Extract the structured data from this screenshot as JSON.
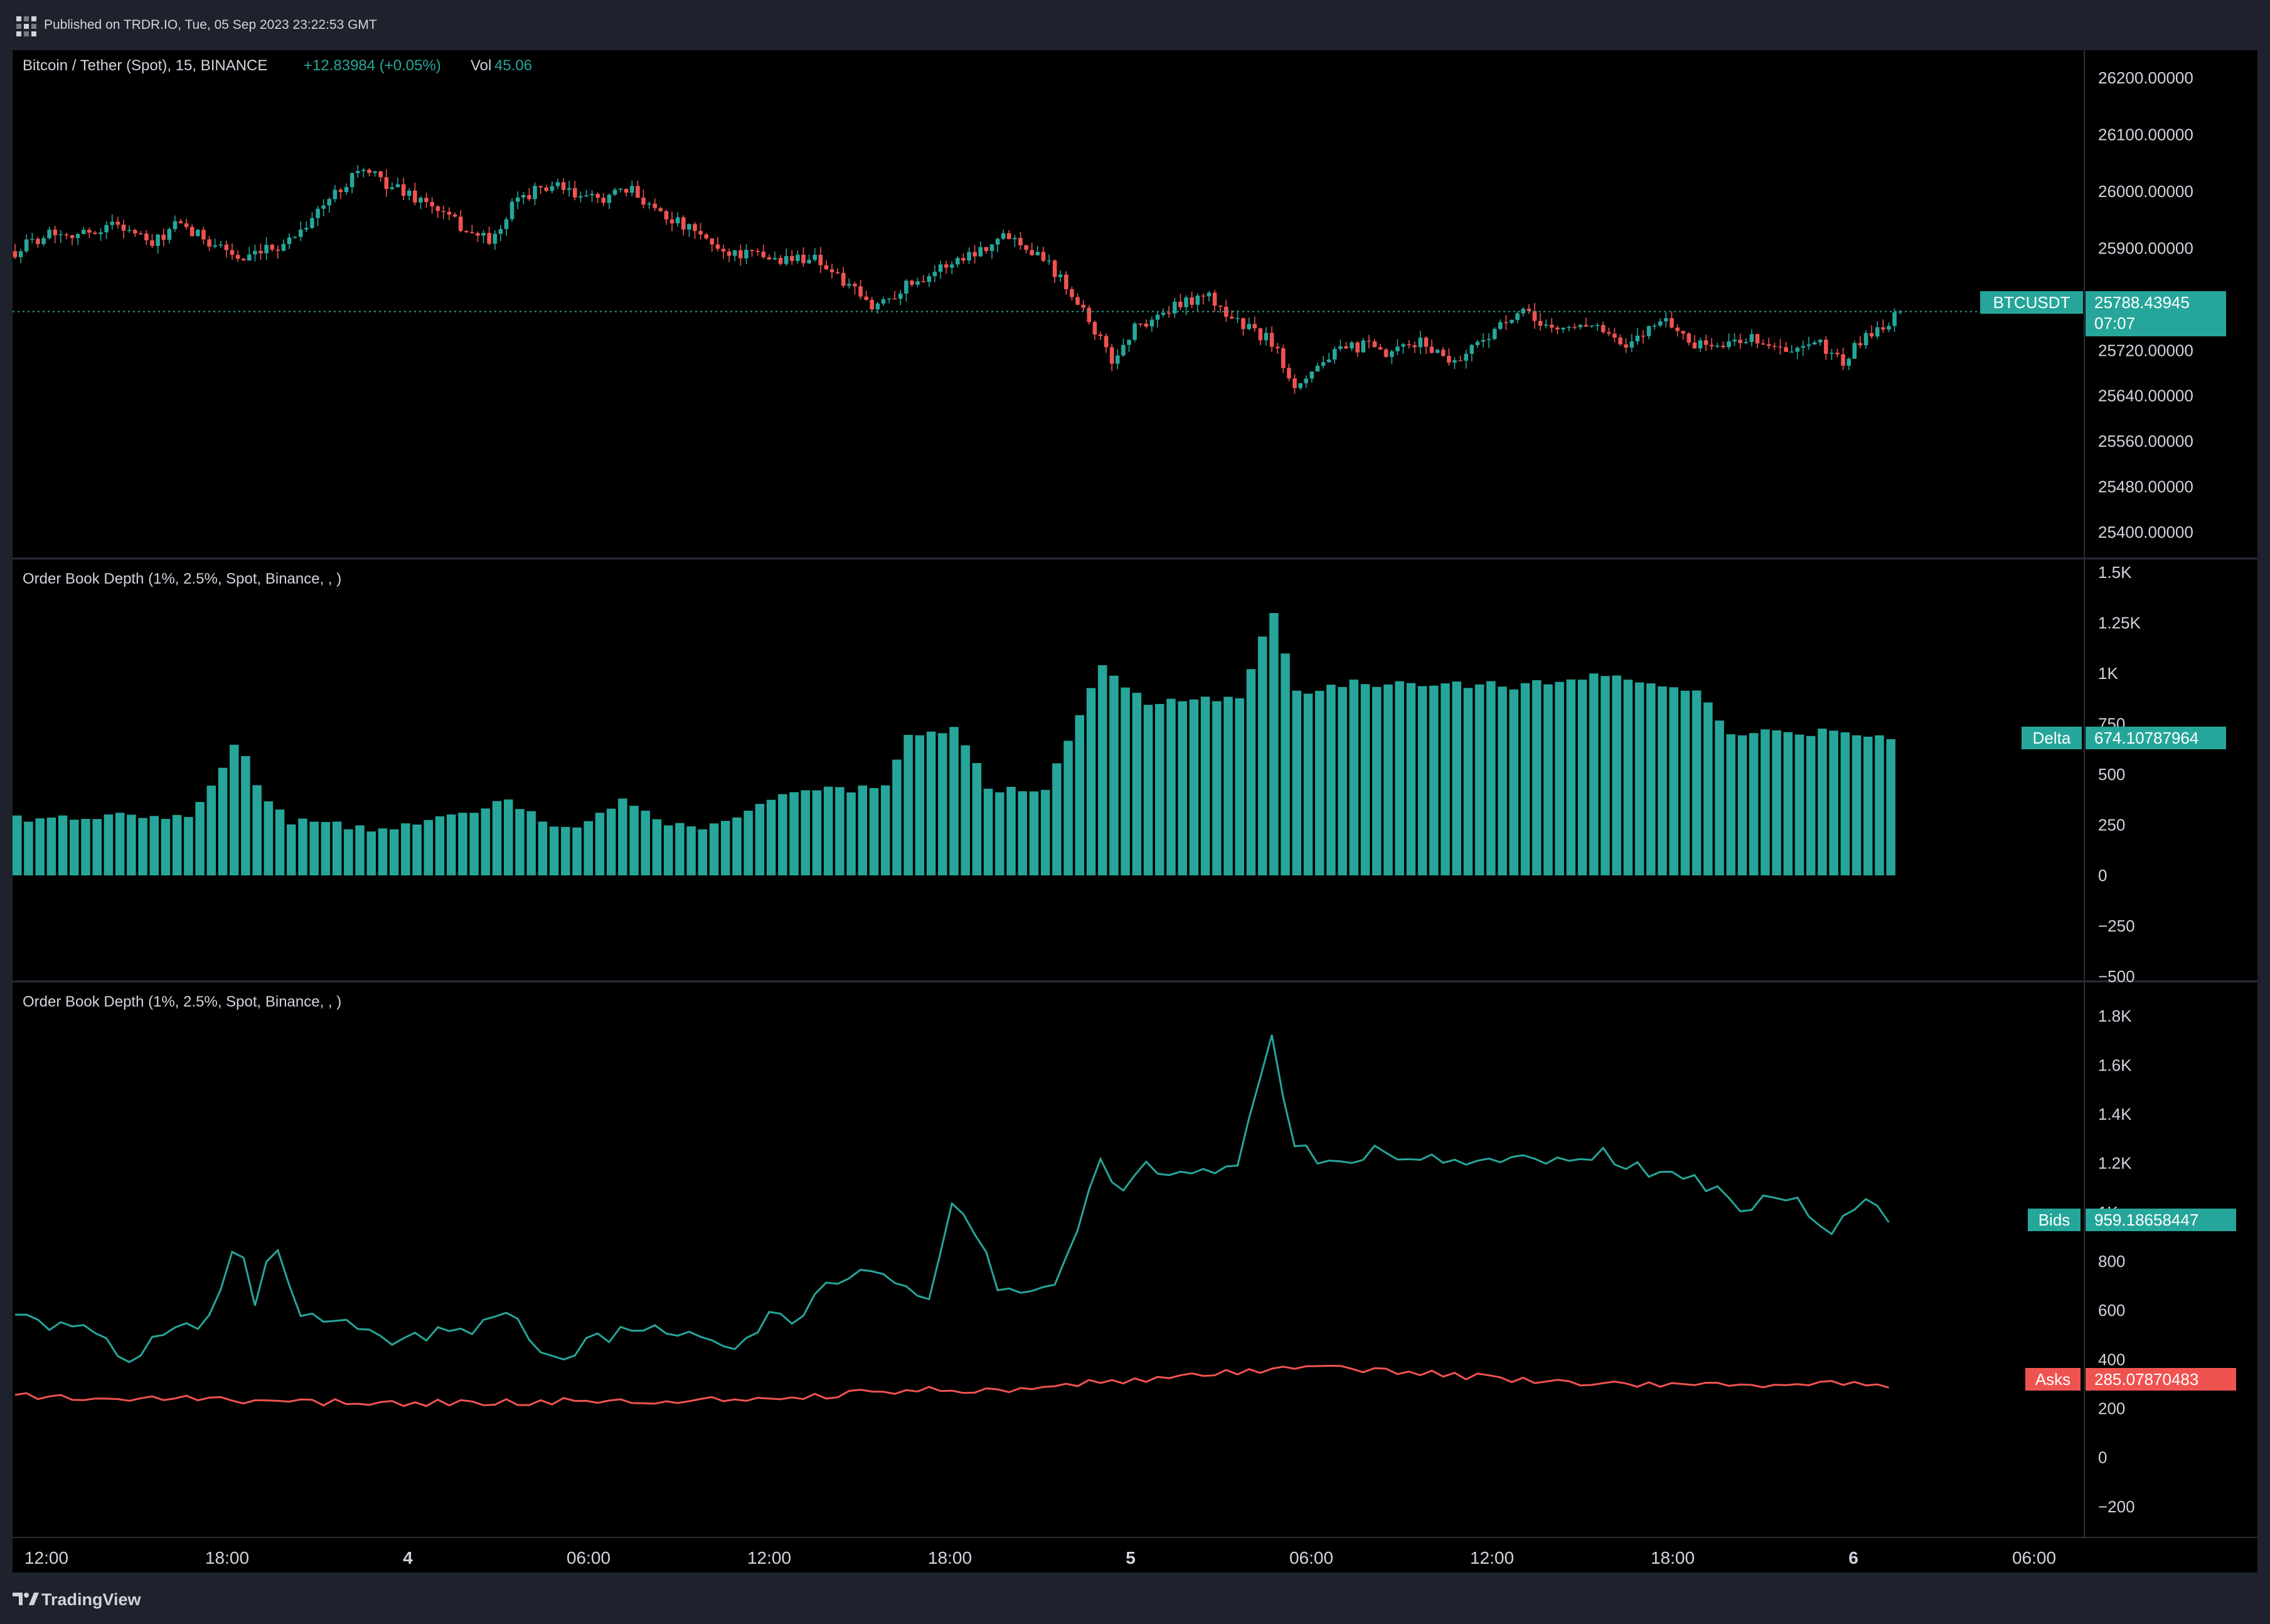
{
  "header": {
    "publish_text": "Published on TRDR.IO, Tue, 05 Sep 2023 23:22:53 GMT"
  },
  "footer": {
    "brand": "TradingView"
  },
  "colors": {
    "background": "#000000",
    "frame": "#1e222d",
    "up": "#26a69a",
    "down": "#ef5350",
    "text": "#d1d4dc",
    "grid": "#2a2e39"
  },
  "panes": [
    {
      "id": "price",
      "legend": {
        "symbol": "Bitcoin / Tether (Spot), 15, BINANCE",
        "change": "+12.83984 (+0.05%)",
        "vol_label": "Vol",
        "vol_value": "45.06"
      },
      "y_ticks": [
        "26200.00000",
        "26100.00000",
        "26000.00000",
        "25900.00000",
        "25720.00000",
        "25640.00000",
        "25560.00000",
        "25480.00000",
        "25400.00000"
      ],
      "last_label": {
        "name": "BTCUSDT",
        "value": "25788.43945",
        "countdown": "07:07"
      }
    },
    {
      "id": "delta",
      "legend": {
        "title": "Order Book Depth (1%, 2.5%, Spot, Binance, , )"
      },
      "y_ticks": [
        "1.5K",
        "1.25K",
        "1K",
        "750",
        "500",
        "250",
        "0",
        "−250",
        "−500"
      ],
      "last_label": {
        "name": "Delta",
        "value": "674.10787964"
      }
    },
    {
      "id": "depth",
      "legend": {
        "title": "Order Book Depth (1%, 2.5%, Spot, Binance, , )"
      },
      "y_ticks": [
        "1.8K",
        "1.6K",
        "1.4K",
        "1.2K",
        "1K",
        "800",
        "600",
        "400",
        "200",
        "0",
        "−200"
      ],
      "bids_label": {
        "name": "Bids",
        "value": "959.18658447"
      },
      "asks_label": {
        "name": "Asks",
        "value": "285.07870483"
      }
    }
  ],
  "x_axis": {
    "ticks": [
      "12:00",
      "18:00",
      "4",
      "06:00",
      "12:00",
      "18:00",
      "5",
      "06:00",
      "12:00",
      "18:00",
      "6",
      "06:00"
    ],
    "bold": [
      false,
      false,
      true,
      false,
      false,
      false,
      true,
      false,
      false,
      false,
      true,
      false
    ]
  },
  "chart_data": [
    {
      "type": "candlestick",
      "title": "Bitcoin / Tether (Spot), 15, BINANCE",
      "interval": "15m",
      "ylim": [
        25360,
        26240
      ],
      "last": 25788.43945,
      "close_keypoints": [
        [
          0,
          25895
        ],
        [
          6,
          25930
        ],
        [
          12,
          25925
        ],
        [
          18,
          25945
        ],
        [
          24,
          25905
        ],
        [
          28,
          25940
        ],
        [
          36,
          25905
        ],
        [
          40,
          25875
        ],
        [
          48,
          25915
        ],
        [
          54,
          25975
        ],
        [
          60,
          26040
        ],
        [
          66,
          26010
        ],
        [
          72,
          25980
        ],
        [
          80,
          25925
        ],
        [
          84,
          25915
        ],
        [
          88,
          25990
        ],
        [
          94,
          26010
        ],
        [
          100,
          25985
        ],
        [
          108,
          26000
        ],
        [
          116,
          25945
        ],
        [
          124,
          25895
        ],
        [
          134,
          25880
        ],
        [
          140,
          25885
        ],
        [
          150,
          25795
        ],
        [
          156,
          25835
        ],
        [
          166,
          25885
        ],
        [
          174,
          25925
        ],
        [
          180,
          25885
        ],
        [
          186,
          25810
        ],
        [
          192,
          25700
        ],
        [
          196,
          25760
        ],
        [
          202,
          25790
        ],
        [
          208,
          25820
        ],
        [
          214,
          25770
        ],
        [
          220,
          25735
        ],
        [
          224,
          25660
        ],
        [
          230,
          25710
        ],
        [
          236,
          25730
        ],
        [
          240,
          25710
        ],
        [
          246,
          25735
        ],
        [
          252,
          25700
        ],
        [
          258,
          25750
        ],
        [
          264,
          25785
        ],
        [
          270,
          25755
        ],
        [
          276,
          25770
        ],
        [
          282,
          25720
        ],
        [
          288,
          25780
        ],
        [
          294,
          25730
        ],
        [
          300,
          25730
        ],
        [
          304,
          25745
        ],
        [
          310,
          25715
        ],
        [
          316,
          25730
        ],
        [
          320,
          25700
        ],
        [
          324,
          25745
        ],
        [
          330,
          25785
        ]
      ],
      "volatility": 11
    },
    {
      "type": "bar",
      "title": "Order Book Depth (1%, 2.5%, Spot, Binance, , )",
      "series": [
        {
          "name": "Delta"
        }
      ],
      "ylim": [
        -500,
        1500
      ],
      "last": 674.10787964,
      "keypoints": [
        [
          0,
          280
        ],
        [
          10,
          285
        ],
        [
          20,
          300
        ],
        [
          30,
          280
        ],
        [
          39,
          670
        ],
        [
          42,
          430
        ],
        [
          48,
          270
        ],
        [
          56,
          250
        ],
        [
          64,
          220
        ],
        [
          72,
          280
        ],
        [
          80,
          300
        ],
        [
          86,
          380
        ],
        [
          92,
          270
        ],
        [
          98,
          220
        ],
        [
          106,
          390
        ],
        [
          114,
          240
        ],
        [
          122,
          250
        ],
        [
          130,
          350
        ],
        [
          136,
          420
        ],
        [
          146,
          420
        ],
        [
          152,
          450
        ],
        [
          156,
          710
        ],
        [
          165,
          720
        ],
        [
          170,
          430
        ],
        [
          180,
          430
        ],
        [
          190,
          1030
        ],
        [
          198,
          860
        ],
        [
          206,
          880
        ],
        [
          214,
          880
        ],
        [
          220,
          1310
        ],
        [
          224,
          900
        ],
        [
          234,
          950
        ],
        [
          250,
          950
        ],
        [
          262,
          940
        ],
        [
          270,
          960
        ],
        [
          278,
          990
        ],
        [
          286,
          940
        ],
        [
          294,
          930
        ],
        [
          300,
          700
        ],
        [
          312,
          710
        ],
        [
          324,
          700
        ],
        [
          330,
          674
        ]
      ]
    },
    {
      "type": "line",
      "title": "Order Book Depth (1%, 2.5%, Spot, Binance, , )",
      "series": [
        {
          "name": "Bids",
          "color": "#26a69a",
          "last": 959.18658447,
          "keypoints": [
            [
              0,
              570
            ],
            [
              8,
              540
            ],
            [
              16,
              510
            ],
            [
              20,
              370
            ],
            [
              26,
              520
            ],
            [
              34,
              560
            ],
            [
              39,
              900
            ],
            [
              42,
              620
            ],
            [
              45,
              900
            ],
            [
              50,
              600
            ],
            [
              56,
              560
            ],
            [
              64,
              480
            ],
            [
              72,
              500
            ],
            [
              80,
              510
            ],
            [
              86,
              600
            ],
            [
              94,
              400
            ],
            [
              102,
              490
            ],
            [
              110,
              520
            ],
            [
              118,
              510
            ],
            [
              126,
              440
            ],
            [
              132,
              580
            ],
            [
              136,
              550
            ],
            [
              142,
              720
            ],
            [
              152,
              760
            ],
            [
              160,
              630
            ],
            [
              164,
              1020
            ],
            [
              168,
              930
            ],
            [
              172,
              690
            ],
            [
              182,
              700
            ],
            [
              190,
              1200
            ],
            [
              194,
              1100
            ],
            [
              198,
              1180
            ],
            [
              206,
              1140
            ],
            [
              214,
              1180
            ],
            [
              220,
              1700
            ],
            [
              224,
              1260
            ],
            [
              230,
              1210
            ],
            [
              240,
              1250
            ],
            [
              250,
              1210
            ],
            [
              258,
              1210
            ],
            [
              264,
              1220
            ],
            [
              270,
              1210
            ],
            [
              278,
              1240
            ],
            [
              284,
              1180
            ],
            [
              294,
              1140
            ],
            [
              302,
              1030
            ],
            [
              312,
              1050
            ],
            [
              318,
              930
            ],
            [
              324,
              1050
            ],
            [
              330,
              959
            ]
          ]
        },
        {
          "name": "Asks",
          "color": "#ef5350",
          "last": 285.07870483,
          "keypoints": [
            [
              0,
              250
            ],
            [
              20,
              245
            ],
            [
              40,
              230
            ],
            [
              60,
              225
            ],
            [
              80,
              225
            ],
            [
              100,
              230
            ],
            [
              120,
              235
            ],
            [
              140,
              250
            ],
            [
              150,
              270
            ],
            [
              160,
              275
            ],
            [
              170,
              280
            ],
            [
              180,
              280
            ],
            [
              190,
              310
            ],
            [
              200,
              320
            ],
            [
              210,
              340
            ],
            [
              220,
              360
            ],
            [
              230,
              370
            ],
            [
              240,
              350
            ],
            [
              250,
              340
            ],
            [
              260,
              320
            ],
            [
              270,
              305
            ],
            [
              280,
              300
            ],
            [
              290,
              290
            ],
            [
              300,
              300
            ],
            [
              310,
              290
            ],
            [
              320,
              310
            ],
            [
              330,
              285
            ]
          ]
        }
      ],
      "ylim": [
        -300,
        1900
      ]
    }
  ]
}
